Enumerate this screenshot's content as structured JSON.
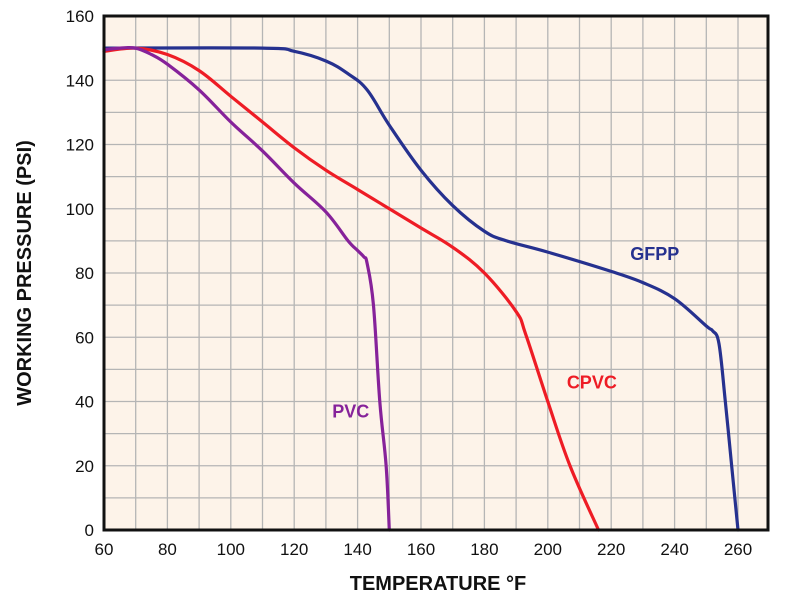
{
  "chart_data": {
    "type": "line",
    "title": "",
    "xlabel": "TEMPERATURE °F",
    "ylabel": "WORKING PRESSURE (PSI)",
    "xlim": [
      60,
      270
    ],
    "ylim": [
      0,
      160
    ],
    "x_ticks": [
      60,
      80,
      100,
      120,
      140,
      160,
      180,
      200,
      220,
      240,
      260
    ],
    "y_ticks": [
      0,
      20,
      40,
      60,
      80,
      100,
      120,
      140,
      160
    ],
    "grid": true,
    "grid_step_x": 10,
    "grid_step_y": 10,
    "background_color": "#fdf3e9",
    "grid_color": "#b5b5b5",
    "legend": "inline labels",
    "series": [
      {
        "name": "GFPP",
        "label": "GFPP",
        "color": "#26318f",
        "label_at": [
          226,
          84
        ],
        "points": [
          [
            60,
            150
          ],
          [
            110,
            150
          ],
          [
            120,
            149
          ],
          [
            130,
            146
          ],
          [
            137,
            142
          ],
          [
            143,
            137
          ],
          [
            150,
            126
          ],
          [
            160,
            112
          ],
          [
            170,
            101
          ],
          [
            180,
            93
          ],
          [
            187,
            90
          ],
          [
            200,
            86.5
          ],
          [
            220,
            80.5
          ],
          [
            230,
            77
          ],
          [
            240,
            72
          ],
          [
            250,
            63.5
          ],
          [
            252,
            62
          ],
          [
            254,
            58
          ],
          [
            256,
            40
          ],
          [
            258,
            20
          ],
          [
            260,
            0
          ]
        ]
      },
      {
        "name": "CPVC",
        "label": "CPVC",
        "color": "#ee1c25",
        "label_at": [
          206,
          44
        ],
        "points": [
          [
            60,
            149
          ],
          [
            70,
            150
          ],
          [
            80,
            148
          ],
          [
            90,
            143
          ],
          [
            100,
            135
          ],
          [
            110,
            127
          ],
          [
            120,
            119
          ],
          [
            130,
            112
          ],
          [
            140,
            106
          ],
          [
            150,
            100
          ],
          [
            160,
            94
          ],
          [
            170,
            88
          ],
          [
            180,
            80
          ],
          [
            190,
            68
          ],
          [
            193,
            61
          ],
          [
            200,
            40
          ],
          [
            207,
            20
          ],
          [
            216,
            0
          ]
        ]
      },
      {
        "name": "PVC",
        "label": "PVC",
        "color": "#86229a",
        "label_at": [
          132,
          35
        ],
        "points": [
          [
            60,
            149.5
          ],
          [
            65,
            150
          ],
          [
            70,
            150
          ],
          [
            75,
            148
          ],
          [
            80,
            145
          ],
          [
            90,
            137
          ],
          [
            100,
            127
          ],
          [
            110,
            118
          ],
          [
            120,
            108
          ],
          [
            130,
            99
          ],
          [
            137,
            90
          ],
          [
            140,
            87
          ],
          [
            142,
            85
          ],
          [
            143,
            83
          ],
          [
            145,
            70
          ],
          [
            147,
            40
          ],
          [
            149,
            20
          ],
          [
            150,
            0
          ]
        ]
      }
    ]
  }
}
